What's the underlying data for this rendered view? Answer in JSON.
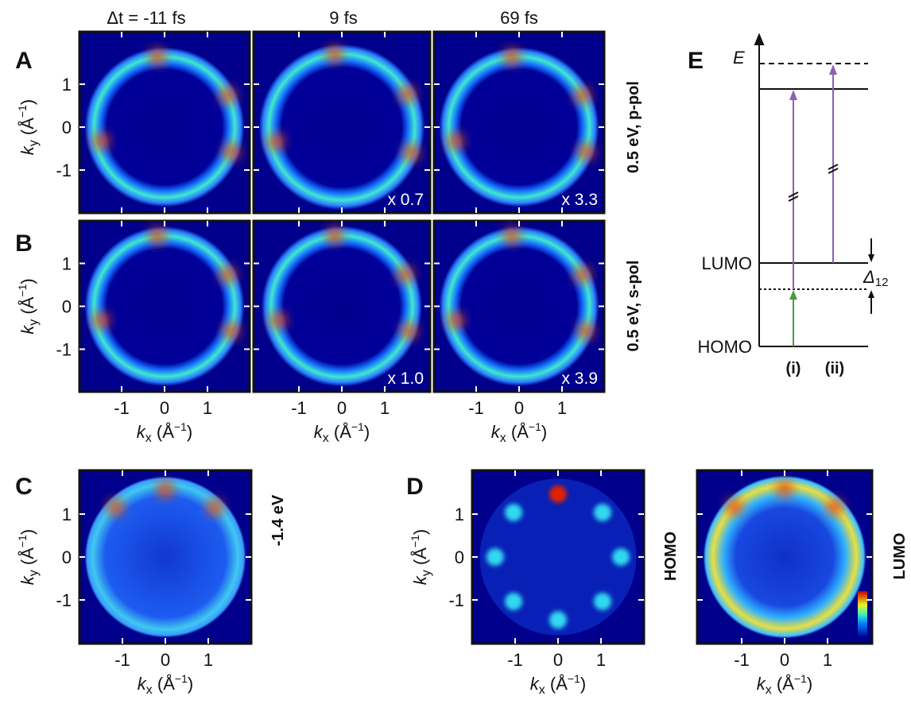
{
  "panel_letters": [
    "A",
    "B",
    "C",
    "D",
    "E"
  ],
  "column_headers": [
    "Δt = -11 fs",
    "9 fs",
    "69 fs"
  ],
  "row_labels": [
    "0.5 eV, p-pol",
    "0.5 eV, s-pol",
    "-1.4 eV",
    "HOMO",
    "LUMO"
  ],
  "scale_factors": [
    "x 0.7",
    "x 3.3",
    "x 1.0",
    "x 3.9"
  ],
  "ticks": [
    "-1",
    "0",
    "1"
  ],
  "axis_label": {
    "symbol": "k",
    "x": "x",
    "y": "y",
    "unit": " (Å",
    "exponent": "−1",
    "close": ")"
  },
  "diagram": {
    "energy": "E",
    "levels": [
      "LUMO",
      "HOMO"
    ],
    "gap": {
      "symbol": "Δ",
      "subscript": "12"
    },
    "transitions": [
      "(i)",
      "(ii)"
    ]
  }
}
